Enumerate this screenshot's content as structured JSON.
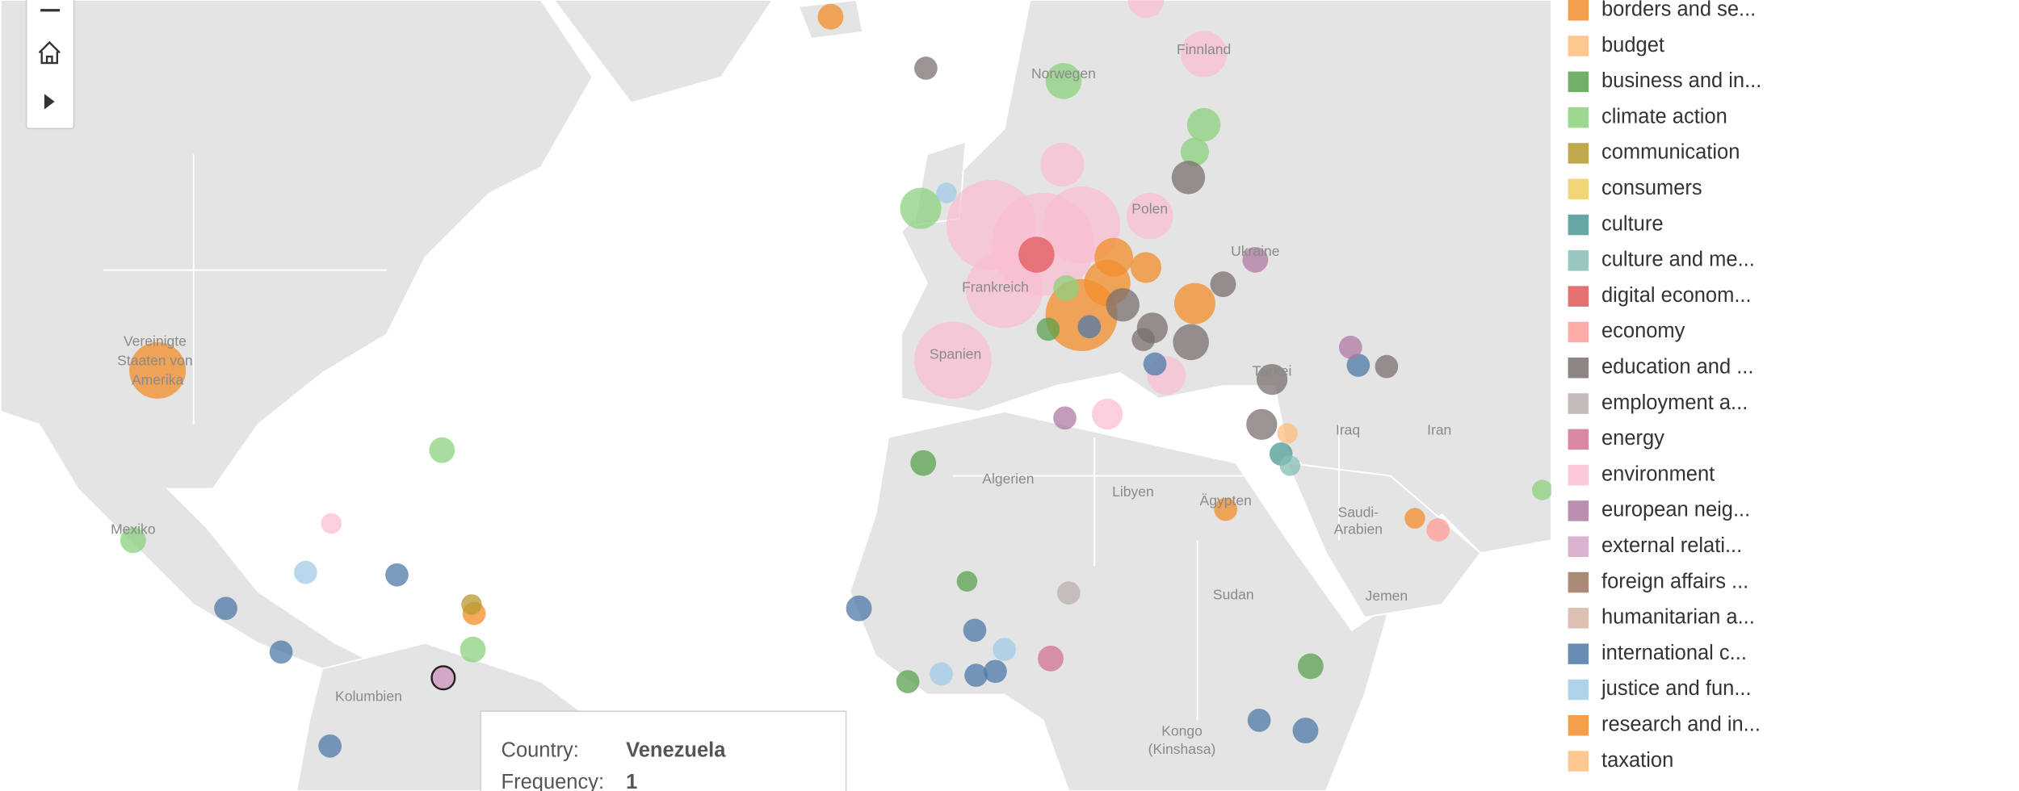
{
  "map": {
    "labels": [
      "Vereinigte",
      "Staaten von",
      "Amerika",
      "Mexiko",
      "Kolumbien",
      "Algerien",
      "Libyen",
      "Ägypten",
      "Sudan",
      "Kongo",
      "(Kinshasa)",
      "Saudi-",
      "Arabien",
      "Jemen",
      "Iraq",
      "Iran",
      "Türkei",
      "Ukraine",
      "Finnland",
      "Norwegen",
      "Spanien",
      "Frankreich",
      "Polen"
    ]
  },
  "legend": {
    "items": [
      {
        "label": "borders and se...",
        "color": "#f28e2b"
      },
      {
        "label": "budget",
        "color": "#ffbe7d"
      },
      {
        "label": "business and in...",
        "color": "#59a14f"
      },
      {
        "label": "climate action",
        "color": "#8cd17d"
      },
      {
        "label": "communication",
        "color": "#b6992d"
      },
      {
        "label": "consumers",
        "color": "#f1ce63"
      },
      {
        "label": "culture",
        "color": "#499894"
      },
      {
        "label": "culture and me...",
        "color": "#86bcb6"
      },
      {
        "label": "digital econom...",
        "color": "#e15759"
      },
      {
        "label": "economy",
        "color": "#ff9d9a"
      },
      {
        "label": "education and ...",
        "color": "#79706e"
      },
      {
        "label": "employment a...",
        "color": "#bab0ac"
      },
      {
        "label": "energy",
        "color": "#d37295"
      },
      {
        "label": "environment",
        "color": "#fabfd2"
      },
      {
        "label": "european neig...",
        "color": "#b07aa1"
      },
      {
        "label": "external relati...",
        "color": "#d4a6c8"
      },
      {
        "label": "foreign affairs ...",
        "color": "#9d7660"
      },
      {
        "label": "humanitarian a...",
        "color": "#d7b5a6"
      },
      {
        "label": "international c...",
        "color": "#4e79a7"
      },
      {
        "label": "justice and fun...",
        "color": "#a0cbe8"
      },
      {
        "label": "research and in...",
        "color": "#f28e2b"
      },
      {
        "label": "taxation",
        "color": "#ffbe7d"
      }
    ]
  },
  "tooltip": {
    "rows": [
      {
        "key": "Country:",
        "value": "Venezuela"
      },
      {
        "key": "Frequency:",
        "value": 1
      }
    ]
  }
}
